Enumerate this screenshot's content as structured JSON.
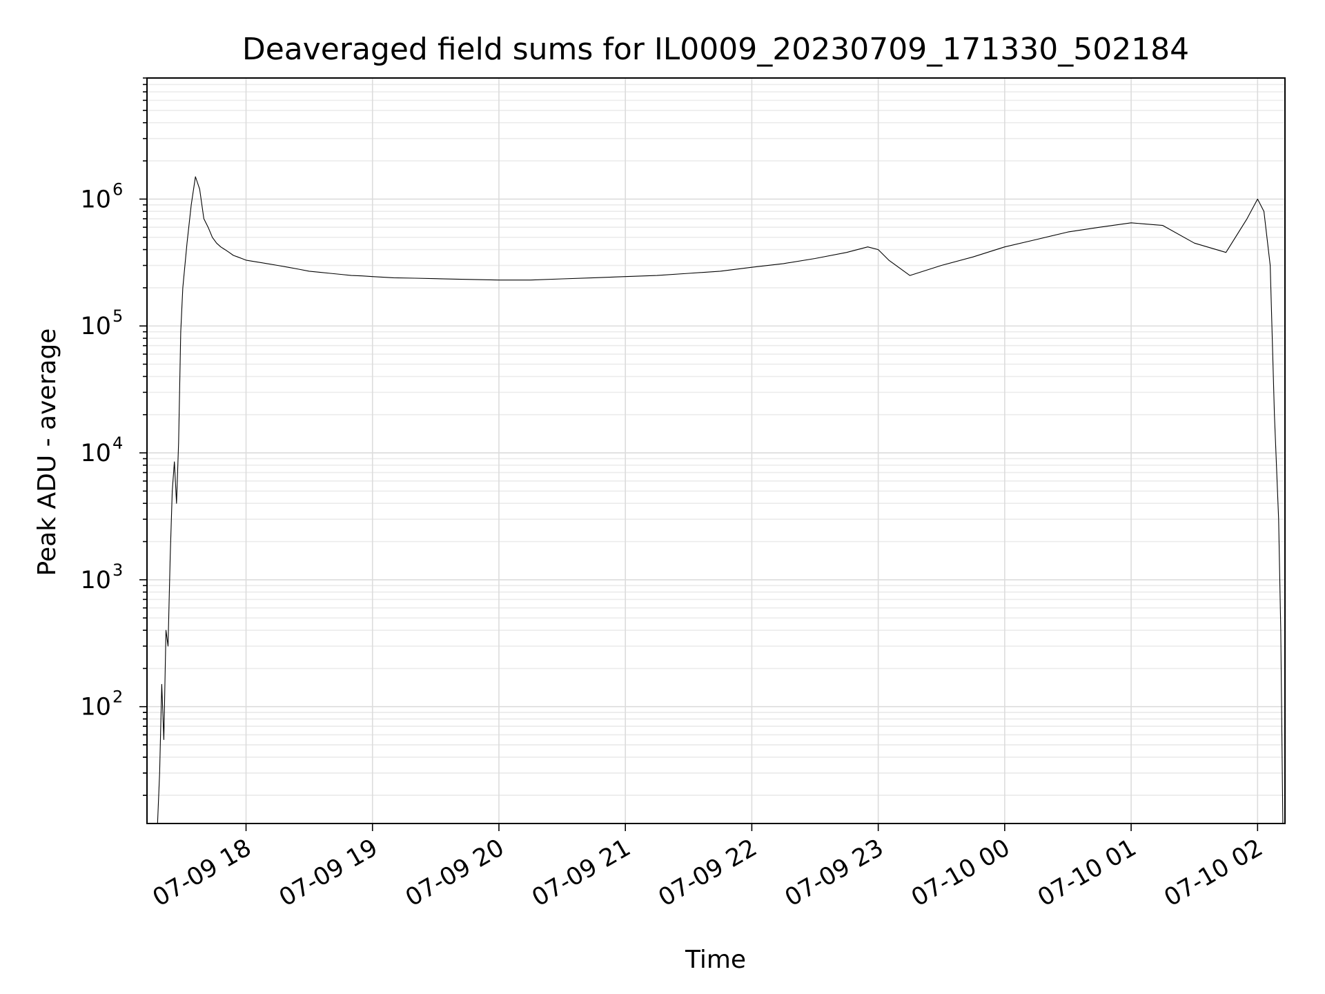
{
  "chart_data": {
    "type": "line",
    "title": "Deaveraged field sums for IL0009_20230709_171330_502184",
    "xlabel": "Time",
    "ylabel": "Peak ADU - average",
    "yscale": "log",
    "grid": true,
    "grid_minor": true,
    "xlim": [
      "2023-07-09 17:13",
      "2023-07-10 02:13"
    ],
    "ylim": [
      12,
      9000000
    ],
    "x_ticks": [
      {
        "value": "2023-07-09 18:00",
        "label": "07-09 18"
      },
      {
        "value": "2023-07-09 19:00",
        "label": "07-09 19"
      },
      {
        "value": "2023-07-09 20:00",
        "label": "07-09 20"
      },
      {
        "value": "2023-07-09 21:00",
        "label": "07-09 21"
      },
      {
        "value": "2023-07-09 22:00",
        "label": "07-09 22"
      },
      {
        "value": "2023-07-09 23:00",
        "label": "07-09 23"
      },
      {
        "value": "2023-07-10 00:00",
        "label": "07-10 00"
      },
      {
        "value": "2023-07-10 01:00",
        "label": "07-10 01"
      },
      {
        "value": "2023-07-10 02:00",
        "label": "07-10 02"
      }
    ],
    "y_ticks": [
      {
        "value": 100,
        "base": "10",
        "exp": "2"
      },
      {
        "value": 1000,
        "base": "10",
        "exp": "3"
      },
      {
        "value": 10000,
        "base": "10",
        "exp": "4"
      },
      {
        "value": 100000,
        "base": "10",
        "exp": "5"
      },
      {
        "value": 1000000,
        "base": "10",
        "exp": "6"
      }
    ],
    "series": [
      {
        "color": "#000000",
        "x": [
          "2023-07-09 17:18",
          "2023-07-09 17:19",
          "2023-07-09 17:20",
          "2023-07-09 17:21",
          "2023-07-09 17:22",
          "2023-07-09 17:23",
          "2023-07-09 17:24",
          "2023-07-09 17:25",
          "2023-07-09 17:26",
          "2023-07-09 17:27",
          "2023-07-09 17:28",
          "2023-07-09 17:29",
          "2023-07-09 17:30",
          "2023-07-09 17:32",
          "2023-07-09 17:34",
          "2023-07-09 17:36",
          "2023-07-09 17:38",
          "2023-07-09 17:40",
          "2023-07-09 17:42",
          "2023-07-09 17:44",
          "2023-07-09 17:46",
          "2023-07-09 17:48",
          "2023-07-09 17:50",
          "2023-07-09 17:52",
          "2023-07-09 17:54",
          "2023-07-09 17:56",
          "2023-07-09 17:58",
          "2023-07-09 18:00",
          "2023-07-09 18:05",
          "2023-07-09 18:10",
          "2023-07-09 18:15",
          "2023-07-09 18:20",
          "2023-07-09 18:25",
          "2023-07-09 18:30",
          "2023-07-09 18:35",
          "2023-07-09 18:40",
          "2023-07-09 18:45",
          "2023-07-09 18:50",
          "2023-07-09 18:55",
          "2023-07-09 19:00",
          "2023-07-09 19:10",
          "2023-07-09 19:20",
          "2023-07-09 19:30",
          "2023-07-09 19:40",
          "2023-07-09 19:50",
          "2023-07-09 20:00",
          "2023-07-09 20:15",
          "2023-07-09 20:30",
          "2023-07-09 20:45",
          "2023-07-09 21:00",
          "2023-07-09 21:15",
          "2023-07-09 21:30",
          "2023-07-09 21:45",
          "2023-07-09 22:00",
          "2023-07-09 22:15",
          "2023-07-09 22:30",
          "2023-07-09 22:45",
          "2023-07-09 22:55",
          "2023-07-09 23:00",
          "2023-07-09 23:05",
          "2023-07-09 23:15",
          "2023-07-09 23:30",
          "2023-07-09 23:45",
          "2023-07-10 00:00",
          "2023-07-10 00:15",
          "2023-07-10 00:30",
          "2023-07-10 00:45",
          "2023-07-10 01:00",
          "2023-07-10 01:15",
          "2023-07-10 01:30",
          "2023-07-10 01:45",
          "2023-07-10 01:55",
          "2023-07-10 02:00",
          "2023-07-10 02:03",
          "2023-07-10 02:06",
          "2023-07-10 02:08",
          "2023-07-10 02:10",
          "2023-07-10 02:11",
          "2023-07-10 02:12"
        ],
        "y": [
          10,
          30,
          150,
          55,
          400,
          300,
          1500,
          5000,
          8500,
          4000,
          12000,
          90000,
          200000,
          450000,
          900000,
          1500000,
          1200000,
          700000,
          600000,
          500000,
          450000,
          420000,
          400000,
          380000,
          360000,
          350000,
          340000,
          330000,
          320000,
          310000,
          300000,
          290000,
          280000,
          270000,
          265000,
          260000,
          255000,
          250000,
          248000,
          245000,
          240000,
          238000,
          236000,
          234000,
          232000,
          230000,
          230000,
          235000,
          240000,
          245000,
          250000,
          260000,
          270000,
          290000,
          310000,
          340000,
          380000,
          420000,
          400000,
          330000,
          250000,
          300000,
          350000,
          420000,
          480000,
          550000,
          600000,
          650000,
          620000,
          450000,
          380000,
          700000,
          1000000,
          800000,
          300000,
          20000,
          3000,
          400,
          10
        ]
      }
    ]
  }
}
